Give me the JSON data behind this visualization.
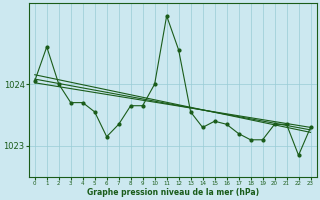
{
  "bg_color": "#cce8f0",
  "plot_bg_color": "#cce8f0",
  "line_color": "#1a5c1a",
  "grid_color": "#99ccd6",
  "xlabel": "Graphe pression niveau de la mer (hPa)",
  "yticks": [
    1023,
    1024
  ],
  "ylim": [
    1022.5,
    1025.3
  ],
  "xlim": [
    -0.5,
    23.5
  ],
  "xticks": [
    0,
    1,
    2,
    3,
    4,
    5,
    6,
    7,
    8,
    9,
    10,
    11,
    12,
    13,
    14,
    15,
    16,
    17,
    18,
    19,
    20,
    21,
    22,
    23
  ],
  "series": [
    [
      0,
      1024.05
    ],
    [
      1,
      1024.6
    ],
    [
      2,
      1024.0
    ],
    [
      3,
      1023.7
    ],
    [
      4,
      1023.7
    ],
    [
      5,
      1023.55
    ],
    [
      6,
      1023.15
    ],
    [
      7,
      1023.35
    ],
    [
      8,
      1023.65
    ],
    [
      9,
      1023.65
    ],
    [
      10,
      1024.0
    ],
    [
      11,
      1025.1
    ],
    [
      12,
      1024.55
    ],
    [
      13,
      1023.55
    ],
    [
      14,
      1023.3
    ],
    [
      15,
      1023.4
    ],
    [
      16,
      1023.35
    ],
    [
      17,
      1023.2
    ],
    [
      18,
      1023.1
    ],
    [
      19,
      1023.1
    ],
    [
      20,
      1023.35
    ],
    [
      21,
      1023.35
    ],
    [
      22,
      1022.85
    ],
    [
      23,
      1023.3
    ]
  ],
  "trend_lines": [
    {
      "x0": 0,
      "y0": 1024.15,
      "x1": 23,
      "y1": 1023.22
    },
    {
      "x0": 0,
      "y0": 1024.08,
      "x1": 23,
      "y1": 1023.26
    },
    {
      "x0": 0,
      "y0": 1024.02,
      "x1": 23,
      "y1": 1023.3
    }
  ],
  "xlabel_fontsize": 5.5,
  "xlabel_fontweight": "bold",
  "ytick_fontsize": 6,
  "xtick_fontsize": 4.0,
  "linewidth": 0.8,
  "markersize": 2.0
}
